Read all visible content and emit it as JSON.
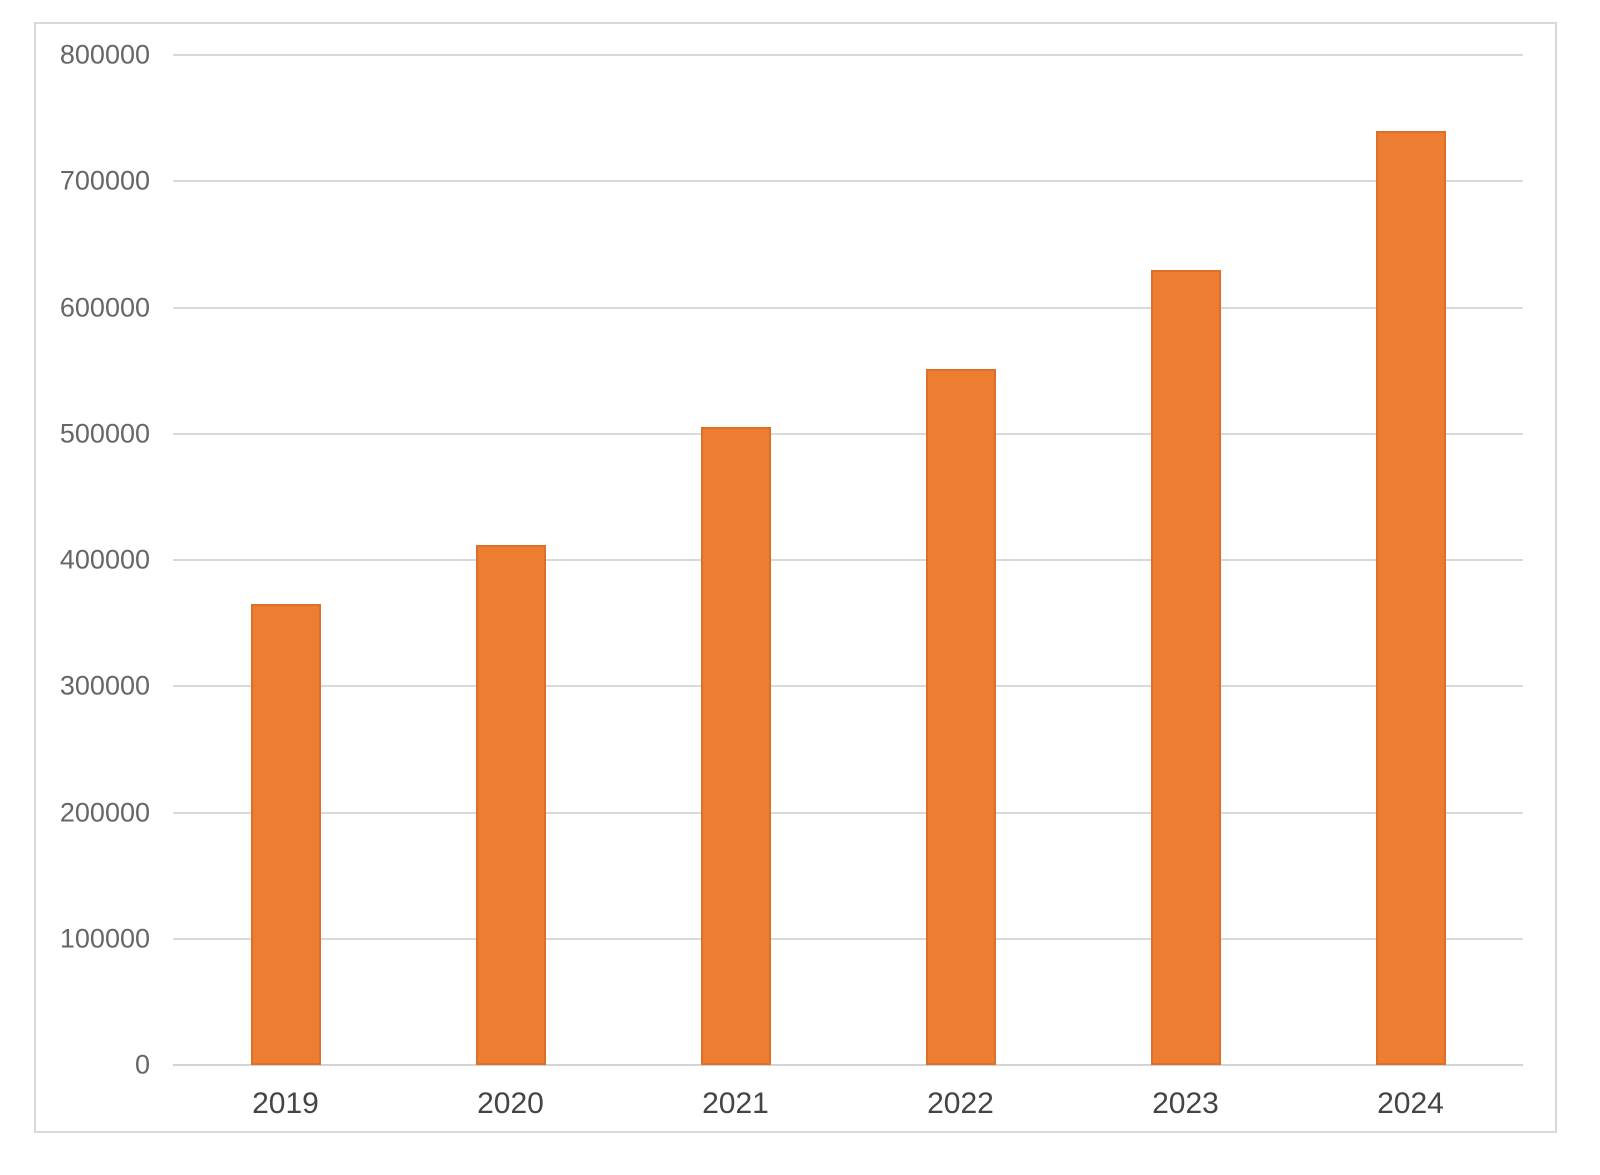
{
  "chart_data": {
    "type": "bar",
    "title": "",
    "categories": [
      "2019",
      "2020",
      "2021",
      "2022",
      "2023",
      "2024"
    ],
    "values": [
      365000,
      412000,
      505000,
      551000,
      630000,
      740000
    ],
    "xlabel": "",
    "ylabel": "",
    "ylim": [
      0,
      800000
    ],
    "ytick_step": 100000,
    "ytick_labels": [
      "0",
      "100000",
      "200000",
      "300000",
      "400000",
      "500000",
      "600000",
      "700000",
      "800000"
    ],
    "grid": "horizontal gridlines on",
    "legend_position": "none",
    "bar_color": "#ED7D31",
    "bar_border_color": "#DE6F28",
    "gridline_color": "#D9D9D9",
    "axis_line_color": "#D4D4D4",
    "chart_border_color": "#D9D9D9",
    "background_color": "#FFFFFF",
    "y_tick_label_color": "#666666",
    "x_tick_label_color": "#444444"
  }
}
